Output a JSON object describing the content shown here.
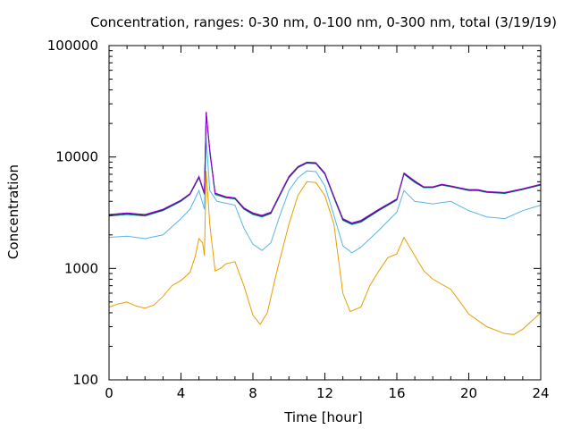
{
  "chart_data": {
    "type": "line",
    "title": "Concentration, ranges: 0-30 nm, 0-100 nm, 0-300 nm, total (3/19/19)",
    "xlabel": "Time [hour]",
    "ylabel": "Concentration",
    "xlim": [
      0,
      24
    ],
    "ylim": [
      100,
      100000
    ],
    "yscale": "log",
    "grid": false,
    "legend": "none",
    "x_ticks": [
      0,
      4,
      8,
      12,
      16,
      20,
      24
    ],
    "x_tick_labels": [
      "0",
      "4",
      "8",
      "12",
      "16",
      "20",
      "24"
    ],
    "y_ticks": [
      100,
      1000,
      10000,
      100000
    ],
    "y_tick_labels": [
      "100",
      "1000",
      "10000",
      "100000"
    ],
    "series": [
      {
        "color": "#e69f00",
        "points": [
          [
            0,
            450
          ],
          [
            0.5,
            480
          ],
          [
            1,
            500
          ],
          [
            1.5,
            460
          ],
          [
            2,
            440
          ],
          [
            2.5,
            470
          ],
          [
            3,
            560
          ],
          [
            3.5,
            700
          ],
          [
            4,
            780
          ],
          [
            4.5,
            920
          ],
          [
            4.8,
            1300
          ],
          [
            5,
            1850
          ],
          [
            5.2,
            1700
          ],
          [
            5.3,
            1300
          ],
          [
            5.4,
            7500
          ],
          [
            5.6,
            2500
          ],
          [
            5.9,
            950
          ],
          [
            6.2,
            1000
          ],
          [
            6.5,
            1100
          ],
          [
            7,
            1150
          ],
          [
            7.5,
            700
          ],
          [
            8,
            380
          ],
          [
            8.4,
            315
          ],
          [
            8.8,
            400
          ],
          [
            9.3,
            900
          ],
          [
            10,
            2500
          ],
          [
            10.5,
            4500
          ],
          [
            11,
            6000
          ],
          [
            11.5,
            5900
          ],
          [
            12,
            4500
          ],
          [
            12.5,
            2500
          ],
          [
            13,
            600
          ],
          [
            13.4,
            410
          ],
          [
            14,
            450
          ],
          [
            14.5,
            700
          ],
          [
            15,
            950
          ],
          [
            15.5,
            1250
          ],
          [
            16,
            1350
          ],
          [
            16.4,
            1900
          ],
          [
            17,
            1300
          ],
          [
            17.5,
            950
          ],
          [
            18,
            800
          ],
          [
            19,
            650
          ],
          [
            20,
            390
          ],
          [
            21,
            300
          ],
          [
            22,
            260
          ],
          [
            22.5,
            255
          ],
          [
            23,
            285
          ],
          [
            24,
            400
          ]
        ]
      },
      {
        "color": "#56b4e9",
        "points": [
          [
            0,
            1900
          ],
          [
            1,
            1950
          ],
          [
            2,
            1850
          ],
          [
            3,
            2000
          ],
          [
            4,
            2800
          ],
          [
            4.5,
            3400
          ],
          [
            5,
            5000
          ],
          [
            5.3,
            3400
          ],
          [
            5.4,
            15000
          ],
          [
            5.6,
            5000
          ],
          [
            6,
            4000
          ],
          [
            7,
            3700
          ],
          [
            7.5,
            2300
          ],
          [
            8,
            1650
          ],
          [
            8.5,
            1450
          ],
          [
            9,
            1700
          ],
          [
            9.5,
            3000
          ],
          [
            10,
            5000
          ],
          [
            10.5,
            6500
          ],
          [
            11,
            7500
          ],
          [
            11.5,
            7400
          ],
          [
            12,
            5500
          ],
          [
            12.5,
            3000
          ],
          [
            13,
            1600
          ],
          [
            13.5,
            1380
          ],
          [
            14,
            1550
          ],
          [
            15,
            2200
          ],
          [
            16,
            3200
          ],
          [
            16.4,
            5000
          ],
          [
            17,
            4000
          ],
          [
            18,
            3800
          ],
          [
            19,
            4000
          ],
          [
            20,
            3300
          ],
          [
            21,
            2900
          ],
          [
            22,
            2800
          ],
          [
            23,
            3300
          ],
          [
            24,
            3700
          ]
        ]
      },
      {
        "color": "#009e73",
        "points": [
          [
            0,
            2950
          ],
          [
            1,
            3050
          ],
          [
            2,
            2950
          ],
          [
            3,
            3300
          ],
          [
            4,
            4000
          ],
          [
            4.5,
            4600
          ],
          [
            5,
            6500
          ],
          [
            5.3,
            4600
          ],
          [
            5.4,
            25000
          ],
          [
            5.6,
            11000
          ],
          [
            5.9,
            4600
          ],
          [
            6.5,
            4300
          ],
          [
            7,
            4200
          ],
          [
            7.5,
            3400
          ],
          [
            8,
            3050
          ],
          [
            8.5,
            2900
          ],
          [
            9,
            3100
          ],
          [
            9.5,
            4500
          ],
          [
            10,
            6500
          ],
          [
            10.5,
            8000
          ],
          [
            11,
            8800
          ],
          [
            11.5,
            8700
          ],
          [
            12,
            7000
          ],
          [
            12.5,
            4300
          ],
          [
            13,
            2700
          ],
          [
            13.5,
            2480
          ],
          [
            14,
            2600
          ],
          [
            15,
            3300
          ],
          [
            16,
            4100
          ],
          [
            16.4,
            7000
          ],
          [
            17,
            5900
          ],
          [
            17.5,
            5300
          ],
          [
            18,
            5300
          ],
          [
            18.5,
            5600
          ],
          [
            19,
            5400
          ],
          [
            20,
            5000
          ],
          [
            20.5,
            5000
          ],
          [
            21,
            4800
          ],
          [
            22,
            4700
          ],
          [
            23,
            5100
          ],
          [
            24,
            5600
          ]
        ]
      },
      {
        "color": "#2a1a6e",
        "points": [
          [
            0,
            3000
          ],
          [
            1,
            3100
          ],
          [
            2,
            3000
          ],
          [
            3,
            3350
          ],
          [
            4,
            4050
          ],
          [
            4.5,
            4650
          ],
          [
            5,
            6600
          ],
          [
            5.3,
            4700
          ],
          [
            5.4,
            25000
          ],
          [
            5.6,
            11500
          ],
          [
            5.9,
            4700
          ],
          [
            6.5,
            4350
          ],
          [
            7,
            4250
          ],
          [
            7.5,
            3450
          ],
          [
            8,
            3100
          ],
          [
            8.5,
            2950
          ],
          [
            9,
            3150
          ],
          [
            9.5,
            4600
          ],
          [
            10,
            6600
          ],
          [
            10.5,
            8100
          ],
          [
            11,
            8900
          ],
          [
            11.5,
            8800
          ],
          [
            12,
            7100
          ],
          [
            12.5,
            4400
          ],
          [
            13,
            2750
          ],
          [
            13.5,
            2520
          ],
          [
            14,
            2650
          ],
          [
            15,
            3350
          ],
          [
            16,
            4150
          ],
          [
            16.4,
            7100
          ],
          [
            17,
            6000
          ],
          [
            17.5,
            5350
          ],
          [
            18,
            5350
          ],
          [
            18.5,
            5650
          ],
          [
            19,
            5450
          ],
          [
            20,
            5050
          ],
          [
            20.5,
            5050
          ],
          [
            21,
            4850
          ],
          [
            22,
            4750
          ],
          [
            23,
            5150
          ],
          [
            24,
            5650
          ]
        ]
      },
      {
        "color": "#9400d3",
        "points": [
          [
            0,
            3050
          ],
          [
            1,
            3150
          ],
          [
            2,
            3050
          ],
          [
            3,
            3400
          ],
          [
            4,
            4100
          ],
          [
            4.5,
            4700
          ],
          [
            5,
            6700
          ],
          [
            5.3,
            4750
          ],
          [
            5.4,
            25500
          ],
          [
            5.6,
            11700
          ],
          [
            5.9,
            4750
          ],
          [
            6.5,
            4400
          ],
          [
            7,
            4300
          ],
          [
            7.5,
            3500
          ],
          [
            8,
            3150
          ],
          [
            8.5,
            3000
          ],
          [
            9,
            3200
          ],
          [
            9.5,
            4650
          ],
          [
            10,
            6700
          ],
          [
            10.5,
            8200
          ],
          [
            11,
            9000
          ],
          [
            11.5,
            8900
          ],
          [
            12,
            7200
          ],
          [
            12.5,
            4450
          ],
          [
            13,
            2800
          ],
          [
            13.5,
            2560
          ],
          [
            14,
            2700
          ],
          [
            15,
            3400
          ],
          [
            16,
            4200
          ],
          [
            16.4,
            7200
          ],
          [
            17,
            6100
          ],
          [
            17.5,
            5400
          ],
          [
            18,
            5400
          ],
          [
            18.5,
            5700
          ],
          [
            19,
            5500
          ],
          [
            20,
            5100
          ],
          [
            20.5,
            5100
          ],
          [
            21,
            4900
          ],
          [
            22,
            4800
          ],
          [
            23,
            5200
          ],
          [
            24,
            5700
          ]
        ]
      }
    ]
  }
}
